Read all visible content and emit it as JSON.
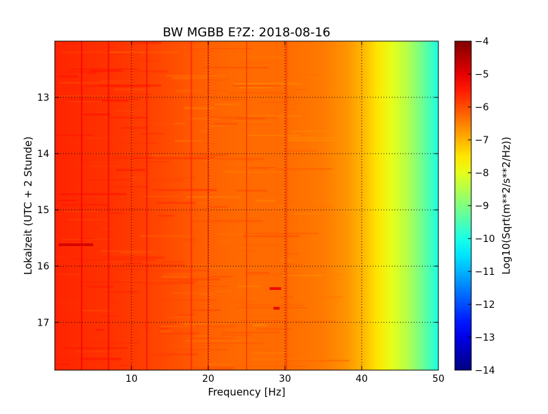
{
  "chart_data": {
    "type": "heatmap",
    "title": "BW MGBB E?Z: 2018-08-16",
    "xlabel": "Frequency [Hz]",
    "ylabel": "Lokalzeit (UTC + 2 Stunde)",
    "xlim": [
      0,
      50
    ],
    "ylim": [
      12,
      17.85
    ],
    "y_inverted": true,
    "x_ticks": [
      10,
      20,
      30,
      40,
      50
    ],
    "x_tick_labels": [
      "10",
      "20",
      "30",
      "40",
      "50"
    ],
    "y_ticks": [
      13,
      14,
      15,
      16,
      17
    ],
    "y_tick_labels": [
      "13",
      "14",
      "15",
      "16",
      "17"
    ],
    "grid": true,
    "colorbar": {
      "label": "Log10(Sqrt(m**2/s**2/Hz))",
      "range": [
        -14,
        -4
      ],
      "colormap": "jet",
      "ticks": [
        -4,
        -5,
        -6,
        -7,
        -8,
        -9,
        -10,
        -11,
        -12,
        -13,
        -14
      ],
      "tick_labels": [
        "−4",
        "−5",
        "−6",
        "−7",
        "−8",
        "−9",
        "−10",
        "−11",
        "−12",
        "−13",
        "−14"
      ]
    },
    "spectrum_profile": {
      "frequency_hz": [
        0,
        5,
        10,
        15,
        20,
        25,
        30,
        35,
        38,
        40,
        42,
        44,
        46,
        48,
        50
      ],
      "log10_amplitude": [
        -5.6,
        -5.7,
        -5.8,
        -6.0,
        -6.2,
        -6.3,
        -6.3,
        -6.45,
        -6.7,
        -7.0,
        -7.5,
        -8.0,
        -8.5,
        -9.2,
        -10.0
      ]
    },
    "vertical_lines_hz": [
      3.5,
      7.0,
      12.0,
      17.8,
      20.0,
      25.0,
      30.2
    ],
    "hot_spots": [
      {
        "x": [
          0.5,
          5.0
        ],
        "y": 15.62,
        "value": -4.8
      },
      {
        "x": [
          28.5,
          29.3
        ],
        "y": 16.75,
        "value": -5.0
      },
      {
        "x": [
          28.0,
          29.5
        ],
        "y": 16.4,
        "value": -5.1
      }
    ]
  }
}
